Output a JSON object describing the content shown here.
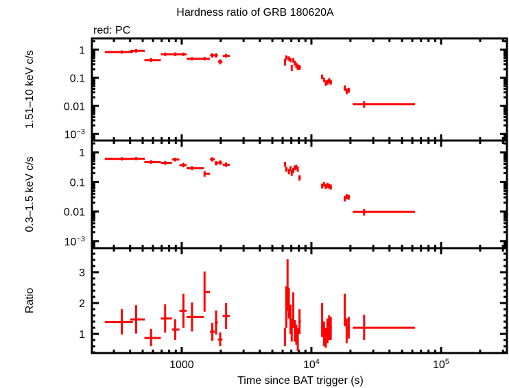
{
  "chart_data": {
    "type": "scatter",
    "title": "Hardness ratio of GRB 180620A",
    "subtitle": "red: PC",
    "xlabel": "Time since BAT trigger (s)",
    "xscale": "log",
    "xlim": [
      203,
      322000
    ],
    "x_ticks": [
      {
        "value": 1000,
        "label": "1000",
        "exp": ""
      },
      {
        "value": 10000,
        "label": "10",
        "exp": "4"
      },
      {
        "value": 100000,
        "label": "10",
        "exp": "5"
      }
    ],
    "series_color": "#ff0000",
    "panels": [
      {
        "name": "hard",
        "ylabel": "1.51–10 keV c/s",
        "yscale": "log",
        "ylim": [
          0.00058,
          2.5
        ],
        "y_ticks": [
          {
            "value": 1,
            "label": "1",
            "exp": ""
          },
          {
            "value": 0.1,
            "label": "0.1",
            "exp": ""
          },
          {
            "value": 0.01,
            "label": "0.01",
            "exp": ""
          },
          {
            "value": 0.001,
            "label": "10",
            "exp": "−3"
          }
        ],
        "points": [
          {
            "x": 345,
            "xlo": 255,
            "xhi": 420,
            "y": 0.82,
            "ylo": 0.72,
            "yhi": 0.93
          },
          {
            "x": 445,
            "xlo": 400,
            "xhi": 520,
            "y": 0.9,
            "ylo": 0.78,
            "yhi": 1.05
          },
          {
            "x": 580,
            "xlo": 515,
            "xhi": 690,
            "y": 0.42,
            "ylo": 0.36,
            "yhi": 0.5
          },
          {
            "x": 745,
            "xlo": 690,
            "xhi": 840,
            "y": 0.68,
            "ylo": 0.59,
            "yhi": 0.78
          },
          {
            "x": 890,
            "xlo": 840,
            "xhi": 960,
            "y": 0.68,
            "ylo": 0.59,
            "yhi": 0.79
          },
          {
            "x": 1030,
            "xlo": 960,
            "xhi": 1090,
            "y": 0.68,
            "ylo": 0.59,
            "yhi": 0.78
          },
          {
            "x": 1200,
            "xlo": 1090,
            "xhi": 1480,
            "y": 0.47,
            "ylo": 0.41,
            "yhi": 0.54
          },
          {
            "x": 1500,
            "xlo": 1480,
            "xhi": 1650,
            "y": 0.47,
            "ylo": 0.41,
            "yhi": 0.55
          },
          {
            "x": 1720,
            "xlo": 1650,
            "xhi": 1800,
            "y": 0.62,
            "ylo": 0.52,
            "yhi": 0.74
          },
          {
            "x": 1840,
            "xlo": 1800,
            "xhi": 1900,
            "y": 0.62,
            "ylo": 0.52,
            "yhi": 0.74
          },
          {
            "x": 1980,
            "xlo": 1900,
            "xhi": 2060,
            "y": 0.37,
            "ylo": 0.3,
            "yhi": 0.45
          },
          {
            "x": 2200,
            "xlo": 2070,
            "xhi": 2350,
            "y": 0.6,
            "ylo": 0.52,
            "yhi": 0.7
          },
          {
            "x": 6250,
            "xlo": 6150,
            "xhi": 6350,
            "y": 0.36,
            "ylo": 0.27,
            "yhi": 0.47
          },
          {
            "x": 6400,
            "xlo": 6300,
            "xhi": 6550,
            "y": 0.52,
            "ylo": 0.42,
            "yhi": 0.62
          },
          {
            "x": 6700,
            "xlo": 6600,
            "xhi": 6800,
            "y": 0.48,
            "ylo": 0.4,
            "yhi": 0.57
          },
          {
            "x": 6900,
            "xlo": 6800,
            "xhi": 7000,
            "y": 0.42,
            "ylo": 0.35,
            "yhi": 0.5
          },
          {
            "x": 7050,
            "xlo": 7000,
            "xhi": 7150,
            "y": 0.22,
            "ylo": 0.17,
            "yhi": 0.28
          },
          {
            "x": 7250,
            "xlo": 7150,
            "xhi": 7350,
            "y": 0.42,
            "ylo": 0.34,
            "yhi": 0.5
          },
          {
            "x": 7450,
            "xlo": 7350,
            "xhi": 7550,
            "y": 0.33,
            "ylo": 0.27,
            "yhi": 0.4
          },
          {
            "x": 7650,
            "xlo": 7550,
            "xhi": 7750,
            "y": 0.28,
            "ylo": 0.22,
            "yhi": 0.34
          },
          {
            "x": 7850,
            "xlo": 7750,
            "xhi": 7950,
            "y": 0.24,
            "ylo": 0.19,
            "yhi": 0.3
          },
          {
            "x": 8100,
            "xlo": 7950,
            "xhi": 8300,
            "y": 0.23,
            "ylo": 0.19,
            "yhi": 0.28
          },
          {
            "x": 12100,
            "xlo": 11900,
            "xhi": 12300,
            "y": 0.11,
            "ylo": 0.09,
            "yhi": 0.13
          },
          {
            "x": 12500,
            "xlo": 12300,
            "xhi": 12700,
            "y": 0.085,
            "ylo": 0.07,
            "yhi": 0.1
          },
          {
            "x": 12900,
            "xlo": 12700,
            "xhi": 13100,
            "y": 0.065,
            "ylo": 0.052,
            "yhi": 0.08
          },
          {
            "x": 13300,
            "xlo": 13100,
            "xhi": 13500,
            "y": 0.07,
            "ylo": 0.056,
            "yhi": 0.085
          },
          {
            "x": 13700,
            "xlo": 13500,
            "xhi": 13900,
            "y": 0.078,
            "ylo": 0.063,
            "yhi": 0.095
          },
          {
            "x": 14100,
            "xlo": 13900,
            "xhi": 14400,
            "y": 0.07,
            "ylo": 0.056,
            "yhi": 0.085
          },
          {
            "x": 18100,
            "xlo": 17800,
            "xhi": 18400,
            "y": 0.043,
            "ylo": 0.034,
            "yhi": 0.053
          },
          {
            "x": 18700,
            "xlo": 18400,
            "xhi": 19000,
            "y": 0.033,
            "ylo": 0.026,
            "yhi": 0.041
          },
          {
            "x": 19400,
            "xlo": 19000,
            "xhi": 19800,
            "y": 0.036,
            "ylo": 0.029,
            "yhi": 0.044
          },
          {
            "x": 25500,
            "xlo": 20800,
            "xhi": 63000,
            "y": 0.0115,
            "ylo": 0.0085,
            "yhi": 0.0145
          }
        ]
      },
      {
        "name": "soft",
        "ylabel": "0.3–1.5 keV c/s",
        "yscale": "log",
        "ylim": [
          0.00058,
          2.5
        ],
        "y_ticks": [
          {
            "value": 1,
            "label": "1",
            "exp": ""
          },
          {
            "value": 0.1,
            "label": "0.1",
            "exp": ""
          },
          {
            "value": 0.01,
            "label": "0.01",
            "exp": ""
          },
          {
            "value": 0.001,
            "label": "10",
            "exp": "−3"
          }
        ],
        "points": [
          {
            "x": 345,
            "xlo": 255,
            "xhi": 420,
            "y": 0.6,
            "ylo": 0.53,
            "yhi": 0.68
          },
          {
            "x": 445,
            "xlo": 400,
            "xhi": 520,
            "y": 0.61,
            "ylo": 0.54,
            "yhi": 0.7
          },
          {
            "x": 580,
            "xlo": 515,
            "xhi": 690,
            "y": 0.47,
            "ylo": 0.41,
            "yhi": 0.54
          },
          {
            "x": 745,
            "xlo": 690,
            "xhi": 840,
            "y": 0.44,
            "ylo": 0.38,
            "yhi": 0.51
          },
          {
            "x": 890,
            "xlo": 840,
            "xhi": 960,
            "y": 0.57,
            "ylo": 0.49,
            "yhi": 0.66
          },
          {
            "x": 1030,
            "xlo": 960,
            "xhi": 1090,
            "y": 0.37,
            "ylo": 0.31,
            "yhi": 0.44
          },
          {
            "x": 1200,
            "xlo": 1090,
            "xhi": 1480,
            "y": 0.29,
            "ylo": 0.25,
            "yhi": 0.34
          },
          {
            "x": 1500,
            "xlo": 1480,
            "xhi": 1650,
            "y": 0.19,
            "ylo": 0.15,
            "yhi": 0.23
          },
          {
            "x": 1720,
            "xlo": 1650,
            "xhi": 1800,
            "y": 0.58,
            "ylo": 0.49,
            "yhi": 0.68
          },
          {
            "x": 1840,
            "xlo": 1800,
            "xhi": 1900,
            "y": 0.43,
            "ylo": 0.36,
            "yhi": 0.51
          },
          {
            "x": 1980,
            "xlo": 1900,
            "xhi": 2060,
            "y": 0.45,
            "ylo": 0.38,
            "yhi": 0.53
          },
          {
            "x": 2200,
            "xlo": 2070,
            "xhi": 2350,
            "y": 0.38,
            "ylo": 0.32,
            "yhi": 0.45
          },
          {
            "x": 6250,
            "xlo": 6150,
            "xhi": 6350,
            "y": 0.4,
            "ylo": 0.33,
            "yhi": 0.48
          },
          {
            "x": 6400,
            "xlo": 6300,
            "xhi": 6550,
            "y": 0.27,
            "ylo": 0.22,
            "yhi": 0.33
          },
          {
            "x": 6700,
            "xlo": 6600,
            "xhi": 6800,
            "y": 0.22,
            "ylo": 0.18,
            "yhi": 0.27
          },
          {
            "x": 6900,
            "xlo": 6800,
            "xhi": 7000,
            "y": 0.28,
            "ylo": 0.23,
            "yhi": 0.34
          },
          {
            "x": 7050,
            "xlo": 7000,
            "xhi": 7150,
            "y": 0.2,
            "ylo": 0.16,
            "yhi": 0.25
          },
          {
            "x": 7250,
            "xlo": 7150,
            "xhi": 7350,
            "y": 0.25,
            "ylo": 0.2,
            "yhi": 0.3
          },
          {
            "x": 7450,
            "xlo": 7350,
            "xhi": 7550,
            "y": 0.3,
            "ylo": 0.25,
            "yhi": 0.36
          },
          {
            "x": 7650,
            "xlo": 7550,
            "xhi": 7750,
            "y": 0.32,
            "ylo": 0.26,
            "yhi": 0.38
          },
          {
            "x": 7850,
            "xlo": 7750,
            "xhi": 7950,
            "y": 0.27,
            "ylo": 0.22,
            "yhi": 0.33
          },
          {
            "x": 8100,
            "xlo": 7950,
            "xhi": 8300,
            "y": 0.14,
            "ylo": 0.11,
            "yhi": 0.17
          },
          {
            "x": 12100,
            "xlo": 11900,
            "xhi": 12300,
            "y": 0.073,
            "ylo": 0.06,
            "yhi": 0.088
          },
          {
            "x": 12500,
            "xlo": 12300,
            "xhi": 12700,
            "y": 0.085,
            "ylo": 0.07,
            "yhi": 0.1
          },
          {
            "x": 12900,
            "xlo": 12700,
            "xhi": 13100,
            "y": 0.07,
            "ylo": 0.057,
            "yhi": 0.084
          },
          {
            "x": 13300,
            "xlo": 13100,
            "xhi": 13500,
            "y": 0.078,
            "ylo": 0.064,
            "yhi": 0.093
          },
          {
            "x": 13700,
            "xlo": 13500,
            "xhi": 13900,
            "y": 0.072,
            "ylo": 0.059,
            "yhi": 0.086
          },
          {
            "x": 14100,
            "xlo": 13900,
            "xhi": 14400,
            "y": 0.068,
            "ylo": 0.055,
            "yhi": 0.082
          },
          {
            "x": 18100,
            "xlo": 17800,
            "xhi": 18400,
            "y": 0.028,
            "ylo": 0.022,
            "yhi": 0.034
          },
          {
            "x": 18700,
            "xlo": 18400,
            "xhi": 19000,
            "y": 0.032,
            "ylo": 0.026,
            "yhi": 0.039
          },
          {
            "x": 19400,
            "xlo": 19000,
            "xhi": 19800,
            "y": 0.031,
            "ylo": 0.025,
            "yhi": 0.037
          },
          {
            "x": 25500,
            "xlo": 20800,
            "xhi": 63000,
            "y": 0.0097,
            "ylo": 0.0073,
            "yhi": 0.0122
          }
        ]
      },
      {
        "name": "ratio",
        "ylabel": "Ratio",
        "yscale": "linear",
        "ylim": [
          0.38,
          3.78
        ],
        "y_ticks": [
          {
            "value": 3,
            "label": "3",
            "exp": ""
          },
          {
            "value": 2,
            "label": "2",
            "exp": ""
          },
          {
            "value": 1,
            "label": "1",
            "exp": ""
          }
        ],
        "points": [
          {
            "x": 345,
            "xlo": 255,
            "xhi": 420,
            "y": 1.39,
            "ylo": 0.98,
            "yhi": 1.8
          },
          {
            "x": 445,
            "xlo": 400,
            "xhi": 520,
            "y": 1.47,
            "ylo": 1.01,
            "yhi": 1.93
          },
          {
            "x": 580,
            "xlo": 515,
            "xhi": 690,
            "y": 0.87,
            "ylo": 0.6,
            "yhi": 1.16
          },
          {
            "x": 745,
            "xlo": 690,
            "xhi": 840,
            "y": 1.5,
            "ylo": 1.04,
            "yhi": 1.96
          },
          {
            "x": 890,
            "xlo": 840,
            "xhi": 960,
            "y": 1.14,
            "ylo": 0.8,
            "yhi": 1.48
          },
          {
            "x": 1030,
            "xlo": 960,
            "xhi": 1090,
            "y": 1.75,
            "ylo": 1.2,
            "yhi": 2.3
          },
          {
            "x": 1200,
            "xlo": 1090,
            "xhi": 1480,
            "y": 1.55,
            "ylo": 1.08,
            "yhi": 2.02
          },
          {
            "x": 1500,
            "xlo": 1480,
            "xhi": 1650,
            "y": 2.36,
            "ylo": 1.72,
            "yhi": 3.02
          },
          {
            "x": 1720,
            "xlo": 1650,
            "xhi": 1800,
            "y": 1.07,
            "ylo": 0.78,
            "yhi": 1.36
          },
          {
            "x": 1840,
            "xlo": 1800,
            "xhi": 1900,
            "y": 1.37,
            "ylo": 0.98,
            "yhi": 1.76
          },
          {
            "x": 1980,
            "xlo": 1900,
            "xhi": 2060,
            "y": 0.82,
            "ylo": 0.6,
            "yhi": 1.05
          },
          {
            "x": 2200,
            "xlo": 2070,
            "xhi": 2350,
            "y": 1.58,
            "ylo": 1.16,
            "yhi": 2.0
          },
          {
            "x": 6250,
            "xlo": 6150,
            "xhi": 6350,
            "y": 0.9,
            "ylo": 0.6,
            "yhi": 1.2
          },
          {
            "x": 6400,
            "xlo": 6300,
            "xhi": 6550,
            "y": 1.9,
            "ylo": 1.2,
            "yhi": 2.55
          },
          {
            "x": 6550,
            "xlo": 6450,
            "xhi": 6650,
            "y": 2.55,
            "ylo": 1.75,
            "yhi": 3.42
          },
          {
            "x": 6700,
            "xlo": 6600,
            "xhi": 6800,
            "y": 2.0,
            "ylo": 1.5,
            "yhi": 2.5
          },
          {
            "x": 6900,
            "xlo": 6800,
            "xhi": 7000,
            "y": 1.45,
            "ylo": 1.0,
            "yhi": 1.95
          },
          {
            "x": 7050,
            "xlo": 7000,
            "xhi": 7150,
            "y": 1.1,
            "ylo": 0.75,
            "yhi": 1.5
          },
          {
            "x": 7250,
            "xlo": 7150,
            "xhi": 7350,
            "y": 1.75,
            "ylo": 1.2,
            "yhi": 2.35
          },
          {
            "x": 7450,
            "xlo": 7350,
            "xhi": 7550,
            "y": 1.1,
            "ylo": 0.75,
            "yhi": 1.45
          },
          {
            "x": 7650,
            "xlo": 7550,
            "xhi": 7750,
            "y": 0.95,
            "ylo": 0.65,
            "yhi": 1.3
          },
          {
            "x": 7850,
            "xlo": 7750,
            "xhi": 7950,
            "y": 0.9,
            "ylo": 0.45,
            "yhi": 1.2
          },
          {
            "x": 8100,
            "xlo": 7950,
            "xhi": 8300,
            "y": 1.4,
            "ylo": 1.0,
            "yhi": 1.8
          },
          {
            "x": 12100,
            "xlo": 11900,
            "xhi": 12300,
            "y": 1.45,
            "ylo": 0.9,
            "yhi": 2.0
          },
          {
            "x": 12500,
            "xlo": 12300,
            "xhi": 12700,
            "y": 1.0,
            "ylo": 0.6,
            "yhi": 1.4
          },
          {
            "x": 12900,
            "xlo": 12700,
            "xhi": 13100,
            "y": 0.85,
            "ylo": 0.55,
            "yhi": 1.2
          },
          {
            "x": 13300,
            "xlo": 13100,
            "xhi": 13500,
            "y": 1.1,
            "ylo": 0.7,
            "yhi": 1.5
          },
          {
            "x": 13700,
            "xlo": 13500,
            "xhi": 13900,
            "y": 1.2,
            "ylo": 0.8,
            "yhi": 1.6
          },
          {
            "x": 14100,
            "xlo": 13900,
            "xhi": 14400,
            "y": 1.2,
            "ylo": 0.8,
            "yhi": 1.55
          },
          {
            "x": 18100,
            "xlo": 17800,
            "xhi": 18400,
            "y": 1.75,
            "ylo": 1.25,
            "yhi": 2.3
          },
          {
            "x": 18700,
            "xlo": 18400,
            "xhi": 19000,
            "y": 1.1,
            "ylo": 0.7,
            "yhi": 1.5
          },
          {
            "x": 19400,
            "xlo": 19000,
            "xhi": 19800,
            "y": 1.2,
            "ylo": 0.85,
            "yhi": 1.55
          },
          {
            "x": 25500,
            "xlo": 20800,
            "xhi": 63000,
            "y": 1.2,
            "ylo": 0.8,
            "yhi": 1.62
          }
        ]
      }
    ]
  }
}
